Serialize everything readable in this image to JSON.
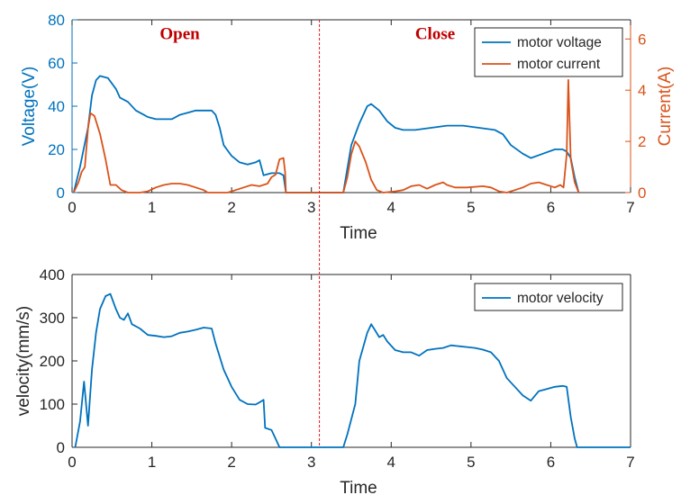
{
  "chart_data": [
    {
      "type": "line",
      "title": "",
      "xlabel": "Time",
      "ylabel_left": "Voltage(V)",
      "ylabel_right": "Current(A)",
      "xlim": [
        0,
        7
      ],
      "ylim_left": [
        0,
        80
      ],
      "ylim_right": [
        0,
        6.75
      ],
      "x_ticks": [
        "0",
        "1",
        "2",
        "3",
        "4",
        "5",
        "6",
        "7"
      ],
      "y_ticks_left": [
        "0",
        "20",
        "40",
        "60",
        "80"
      ],
      "y_ticks_right": [
        "0",
        "2",
        "4",
        "6"
      ],
      "grid": false,
      "legend_position": "top-right",
      "annotations": [
        {
          "text": "Open",
          "x": 1.35,
          "y": 71,
          "color": "#c00000"
        },
        {
          "text": "Close",
          "x": 4.55,
          "y": 71,
          "color": "#c00000"
        }
      ],
      "divider_x": 3.1,
      "series": [
        {
          "name": "motor voltage",
          "axis": "left",
          "color": "#0072bd",
          "points": [
            [
              0.02,
              0
            ],
            [
              0.1,
              12
            ],
            [
              0.2,
              30
            ],
            [
              0.25,
              45
            ],
            [
              0.3,
              52
            ],
            [
              0.35,
              54
            ],
            [
              0.45,
              53
            ],
            [
              0.55,
              48
            ],
            [
              0.6,
              44
            ],
            [
              0.7,
              42
            ],
            [
              0.8,
              38
            ],
            [
              0.9,
              36
            ],
            [
              0.95,
              35
            ],
            [
              1.05,
              34
            ],
            [
              1.15,
              34
            ],
            [
              1.25,
              34
            ],
            [
              1.35,
              36
            ],
            [
              1.45,
              37
            ],
            [
              1.55,
              38
            ],
            [
              1.65,
              38
            ],
            [
              1.75,
              38
            ],
            [
              1.8,
              36
            ],
            [
              1.85,
              30
            ],
            [
              1.9,
              22
            ],
            [
              2.0,
              17
            ],
            [
              2.1,
              14
            ],
            [
              2.2,
              13
            ],
            [
              2.3,
              14
            ],
            [
              2.35,
              15
            ],
            [
              2.4,
              8
            ],
            [
              2.5,
              9
            ],
            [
              2.6,
              9
            ],
            [
              2.65,
              8
            ],
            [
              2.68,
              0
            ],
            [
              3.4,
              0
            ],
            [
              3.5,
              22
            ],
            [
              3.6,
              32
            ],
            [
              3.7,
              40
            ],
            [
              3.75,
              41
            ],
            [
              3.85,
              38
            ],
            [
              3.95,
              33
            ],
            [
              4.05,
              30
            ],
            [
              4.15,
              29
            ],
            [
              4.3,
              29
            ],
            [
              4.5,
              30
            ],
            [
              4.7,
              31
            ],
            [
              4.9,
              31
            ],
            [
              5.1,
              30
            ],
            [
              5.3,
              29
            ],
            [
              5.4,
              27
            ],
            [
              5.5,
              22
            ],
            [
              5.65,
              18
            ],
            [
              5.75,
              16
            ],
            [
              5.9,
              18
            ],
            [
              6.05,
              20
            ],
            [
              6.15,
              20
            ],
            [
              6.2,
              19
            ],
            [
              6.25,
              16
            ],
            [
              6.3,
              7
            ],
            [
              6.35,
              0
            ]
          ]
        },
        {
          "name": "motor current",
          "axis": "right",
          "color": "#d95319",
          "points": [
            [
              0.02,
              0
            ],
            [
              0.08,
              0.4
            ],
            [
              0.12,
              0.8
            ],
            [
              0.16,
              1.0
            ],
            [
              0.2,
              2.5
            ],
            [
              0.23,
              3.1
            ],
            [
              0.28,
              3.0
            ],
            [
              0.35,
              2.3
            ],
            [
              0.42,
              1.3
            ],
            [
              0.48,
              0.3
            ],
            [
              0.55,
              0.3
            ],
            [
              0.62,
              0.1
            ],
            [
              0.7,
              0
            ],
            [
              0.85,
              0
            ],
            [
              0.95,
              0.05
            ],
            [
              1.05,
              0.2
            ],
            [
              1.15,
              0.3
            ],
            [
              1.25,
              0.35
            ],
            [
              1.35,
              0.35
            ],
            [
              1.45,
              0.3
            ],
            [
              1.55,
              0.2
            ],
            [
              1.65,
              0.1
            ],
            [
              1.7,
              0
            ],
            [
              1.95,
              0
            ],
            [
              2.05,
              0.1
            ],
            [
              2.15,
              0.2
            ],
            [
              2.25,
              0.3
            ],
            [
              2.35,
              0.25
            ],
            [
              2.45,
              0.35
            ],
            [
              2.5,
              0.6
            ],
            [
              2.55,
              0.7
            ],
            [
              2.6,
              1.3
            ],
            [
              2.65,
              1.35
            ],
            [
              2.67,
              0.8
            ],
            [
              2.68,
              0
            ],
            [
              3.4,
              0
            ],
            [
              3.45,
              0.6
            ],
            [
              3.5,
              1.5
            ],
            [
              3.55,
              2.0
            ],
            [
              3.6,
              1.8
            ],
            [
              3.68,
              1.2
            ],
            [
              3.75,
              0.5
            ],
            [
              3.82,
              0.1
            ],
            [
              3.9,
              0
            ],
            [
              4.05,
              0.05
            ],
            [
              4.15,
              0.1
            ],
            [
              4.25,
              0.25
            ],
            [
              4.35,
              0.3
            ],
            [
              4.45,
              0.15
            ],
            [
              4.55,
              0.3
            ],
            [
              4.65,
              0.4
            ],
            [
              4.7,
              0.3
            ],
            [
              4.8,
              0.2
            ],
            [
              4.95,
              0.2
            ],
            [
              5.15,
              0.25
            ],
            [
              5.25,
              0.2
            ],
            [
              5.35,
              0.05
            ],
            [
              5.45,
              0
            ],
            [
              5.55,
              0.1
            ],
            [
              5.65,
              0.2
            ],
            [
              5.75,
              0.35
            ],
            [
              5.85,
              0.4
            ],
            [
              5.95,
              0.3
            ],
            [
              6.05,
              0.2
            ],
            [
              6.12,
              0.3
            ],
            [
              6.16,
              0.2
            ],
            [
              6.2,
              1.5
            ],
            [
              6.22,
              4.4
            ],
            [
              6.25,
              1.3
            ],
            [
              6.3,
              0.4
            ],
            [
              6.35,
              0
            ]
          ]
        }
      ]
    },
    {
      "type": "line",
      "title": "",
      "xlabel": "Time",
      "ylabel": "velocity(mm/s)",
      "xlim": [
        0,
        7
      ],
      "ylim": [
        0,
        400
      ],
      "x_ticks": [
        "0",
        "1",
        "2",
        "3",
        "4",
        "5",
        "6",
        "7"
      ],
      "y_ticks": [
        "0",
        "100",
        "200",
        "300",
        "400"
      ],
      "grid": false,
      "legend_position": "top-right",
      "divider_x": 3.1,
      "series": [
        {
          "name": "motor velocity",
          "color": "#0072bd",
          "points": [
            [
              0.04,
              0
            ],
            [
              0.1,
              60
            ],
            [
              0.15,
              152
            ],
            [
              0.2,
              50
            ],
            [
              0.25,
              180
            ],
            [
              0.3,
              265
            ],
            [
              0.35,
              320
            ],
            [
              0.42,
              350
            ],
            [
              0.48,
              355
            ],
            [
              0.55,
              320
            ],
            [
              0.6,
              300
            ],
            [
              0.65,
              295
            ],
            [
              0.7,
              310
            ],
            [
              0.75,
              285
            ],
            [
              0.85,
              275
            ],
            [
              0.95,
              260
            ],
            [
              1.05,
              258
            ],
            [
              1.15,
              255
            ],
            [
              1.25,
              257
            ],
            [
              1.35,
              265
            ],
            [
              1.45,
              268
            ],
            [
              1.55,
              272
            ],
            [
              1.65,
              277
            ],
            [
              1.75,
              275
            ],
            [
              1.8,
              240
            ],
            [
              1.9,
              180
            ],
            [
              2.0,
              140
            ],
            [
              2.1,
              110
            ],
            [
              2.2,
              100
            ],
            [
              2.3,
              99
            ],
            [
              2.35,
              104
            ],
            [
              2.4,
              110
            ],
            [
              2.42,
              45
            ],
            [
              2.5,
              40
            ],
            [
              2.55,
              20
            ],
            [
              2.6,
              0
            ],
            [
              3.4,
              0
            ],
            [
              3.45,
              30
            ],
            [
              3.55,
              100
            ],
            [
              3.6,
              200
            ],
            [
              3.7,
              265
            ],
            [
              3.75,
              285
            ],
            [
              3.8,
              270
            ],
            [
              3.85,
              255
            ],
            [
              3.9,
              260
            ],
            [
              3.95,
              245
            ],
            [
              4.05,
              225
            ],
            [
              4.15,
              220
            ],
            [
              4.25,
              220
            ],
            [
              4.35,
              212
            ],
            [
              4.45,
              225
            ],
            [
              4.55,
              228
            ],
            [
              4.65,
              230
            ],
            [
              4.75,
              236
            ],
            [
              4.85,
              234
            ],
            [
              4.95,
              232
            ],
            [
              5.05,
              230
            ],
            [
              5.15,
              226
            ],
            [
              5.25,
              220
            ],
            [
              5.35,
              200
            ],
            [
              5.45,
              160
            ],
            [
              5.55,
              140
            ],
            [
              5.65,
              120
            ],
            [
              5.75,
              108
            ],
            [
              5.85,
              130
            ],
            [
              5.95,
              135
            ],
            [
              6.05,
              140
            ],
            [
              6.15,
              142
            ],
            [
              6.2,
              140
            ],
            [
              6.25,
              70
            ],
            [
              6.3,
              20
            ],
            [
              6.33,
              0
            ],
            [
              7.0,
              0
            ]
          ]
        }
      ]
    }
  ]
}
